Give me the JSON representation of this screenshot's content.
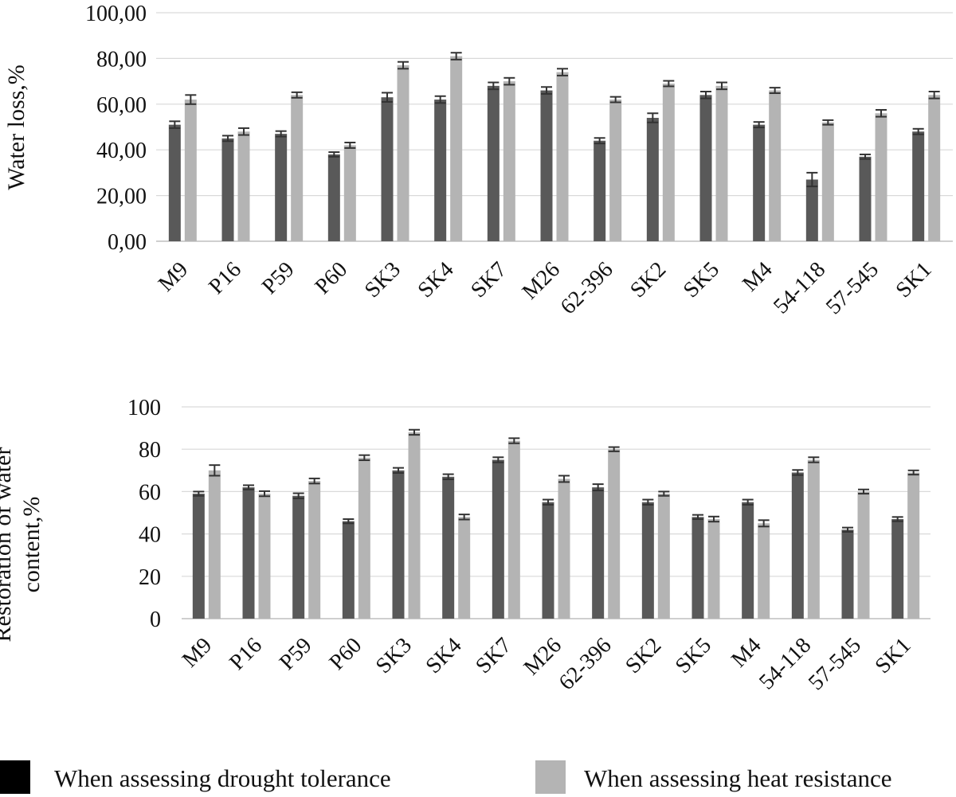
{
  "chart_data": [
    {
      "type": "bar",
      "ylabel": "Water loss,%",
      "ylim": [
        0,
        100
      ],
      "yticks": [
        "0,00",
        "20,00",
        "40,00",
        "60,00",
        "80,00",
        "100,00"
      ],
      "categories": [
        "M9",
        "P16",
        "P59",
        "P60",
        "SK3",
        "SK4",
        "SK7",
        "M26",
        "62-396",
        "SK2",
        "SK5",
        "M4",
        "54-118",
        "57-545",
        "SK1"
      ],
      "series": [
        {
          "name": "When assessing drought tolerance",
          "values": [
            51,
            45,
            47,
            38,
            63,
            62,
            68,
            66,
            44,
            54,
            64,
            51,
            27,
            37,
            48
          ],
          "errors": [
            1.5,
            1.2,
            1.2,
            1.0,
            2.0,
            1.5,
            1.5,
            1.5,
            1.2,
            2.0,
            1.5,
            1.2,
            3.0,
            1.0,
            1.2
          ]
        },
        {
          "name": "When assessing heat resistance",
          "values": [
            62,
            48,
            64,
            42,
            77,
            81,
            70,
            74,
            62,
            69,
            68,
            66,
            52,
            56,
            64
          ],
          "errors": [
            2.0,
            1.5,
            1.2,
            1.2,
            1.5,
            1.5,
            1.5,
            1.5,
            1.2,
            1.2,
            1.5,
            1.2,
            1.0,
            1.5,
            1.5
          ]
        }
      ]
    },
    {
      "type": "bar",
      "ylabel": "Restoration of water content,%",
      "ylabel_lines": [
        "Restoration of water",
        "content,%"
      ],
      "ylim": [
        0,
        100
      ],
      "yticks": [
        "0",
        "20",
        "40",
        "60",
        "80",
        "100"
      ],
      "categories": [
        "M9",
        "P16",
        "P59",
        "P60",
        "SK3",
        "SK4",
        "SK7",
        "M26",
        "62-396",
        "SK2",
        "SK5",
        "M4",
        "54-118",
        "57-545",
        "SK1"
      ],
      "series": [
        {
          "name": "When assessing drought tolerance",
          "values": [
            59,
            62,
            58,
            46,
            70,
            67,
            75,
            55,
            62,
            55,
            48,
            55,
            69,
            42,
            47
          ],
          "errors": [
            1.0,
            1.0,
            1.2,
            1.0,
            1.2,
            1.2,
            1.2,
            1.2,
            1.5,
            1.2,
            1.0,
            1.2,
            1.2,
            1.0,
            1.0
          ]
        },
        {
          "name": "When assessing heat resistance",
          "values": [
            70,
            59,
            65,
            76,
            88,
            48,
            84,
            66,
            80,
            59,
            47,
            45,
            75,
            60,
            69
          ],
          "errors": [
            2.5,
            1.2,
            1.2,
            1.2,
            1.2,
            1.2,
            1.2,
            1.5,
            1.0,
            1.0,
            1.2,
            1.5,
            1.2,
            1.0,
            1.0
          ]
        }
      ]
    }
  ],
  "legend": {
    "items": [
      {
        "label": "When assessing drought tolerance",
        "color": "#595959"
      },
      {
        "label": "When assessing heat resistance",
        "color": "#b4b4b4"
      }
    ]
  },
  "colors": {
    "drought": "#595959",
    "heat": "#b4b4b4",
    "grid": "#d9d9d9",
    "legend_drought_swatch": "#000000",
    "error": "#333333"
  }
}
